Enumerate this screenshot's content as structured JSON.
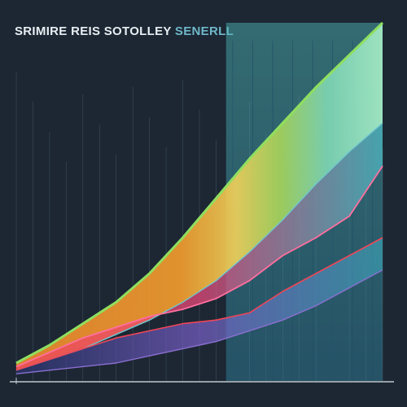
{
  "title_main": "SRIMIRE REIS SOTOLLEY",
  "title_accent": "SENERLL",
  "colors": {
    "background": "#1c2733",
    "outer_line": "#8fdf5f",
    "inner_line": "#6fc7cf",
    "pink_line": "#ff6f9f",
    "red_line": "#ef4657",
    "violet_line": "#8a6fd0",
    "band_orange": "#f59e2e",
    "band_yellow": "#f3d35a",
    "band_lime": "#a8d65a",
    "band_teal": "#5fc4b8"
  },
  "chart_data": {
    "type": "area",
    "xlim": [
      0,
      22
    ],
    "ylim": [
      0,
      100
    ],
    "grid": "vertical",
    "legend": "none",
    "x": [
      0,
      2,
      4,
      6,
      8,
      10,
      12,
      14,
      16,
      18,
      20,
      22
    ],
    "series": [
      {
        "values": [
          5,
          10,
          16,
          22,
          30,
          40,
          51,
          62,
          72,
          82,
          91,
          100
        ]
      },
      {
        "values": [
          3,
          6,
          9,
          13,
          17,
          22,
          28,
          36,
          45,
          55,
          64,
          72
        ]
      },
      {
        "values": [
          4,
          8,
          12,
          15,
          18,
          20,
          23,
          28,
          35,
          40,
          46,
          60
        ]
      },
      {
        "values": [
          3,
          6,
          9,
          12,
          14,
          16,
          17,
          19,
          25,
          30,
          35,
          40
        ]
      },
      {
        "values": [
          2,
          3,
          4,
          5,
          7,
          9,
          11,
          14,
          17,
          21,
          26,
          31
        ]
      }
    ]
  }
}
